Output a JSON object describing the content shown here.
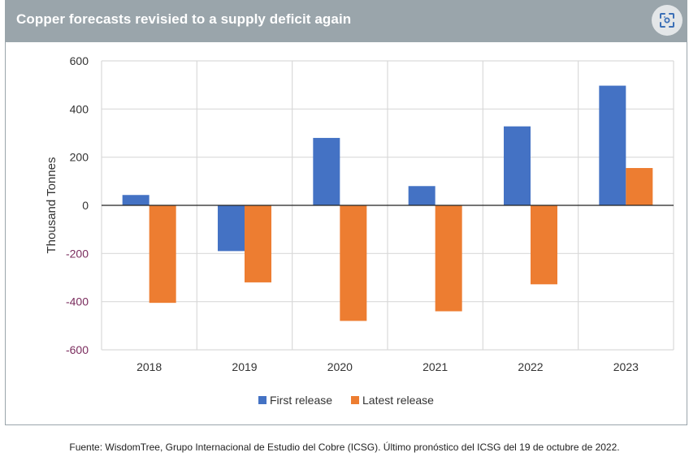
{
  "header": {
    "title": "Copper forecasts revisied to a supply deficit again",
    "lens_icon": "visual-search-icon"
  },
  "footer": {
    "source": "Fuente: WisdomTree, Grupo Internacional de Estudio del Cobre (ICSG). Último pronóstico del ICSG del 19 de octubre de 2022."
  },
  "colors": {
    "first_release": "#4472c4",
    "latest_release": "#ed7d31",
    "header_bg": "#9aa5ab",
    "negative_tick": "#7b2d5e"
  },
  "chart_data": {
    "type": "bar",
    "title": "Copper forecasts revisied to a supply deficit again",
    "xlabel": "",
    "ylabel": "Thousand Tonnes",
    "ylim": [
      -600,
      600
    ],
    "yticks": [
      600,
      400,
      200,
      0,
      -200,
      -400,
      -600
    ],
    "ytick_labels": [
      "600",
      "400",
      "200",
      "0",
      "-200",
      "-400",
      "-600"
    ],
    "grid": true,
    "legend_position": "bottom",
    "categories": [
      "2018",
      "2019",
      "2020",
      "2021",
      "2022",
      "2023"
    ],
    "series": [
      {
        "name": "First release",
        "color": "#4472c4",
        "values": [
          43,
          -190,
          280,
          80,
          328,
          497
        ]
      },
      {
        "name": "Latest release",
        "color": "#ed7d31",
        "values": [
          -405,
          -320,
          -480,
          -440,
          -328,
          155
        ]
      }
    ]
  }
}
